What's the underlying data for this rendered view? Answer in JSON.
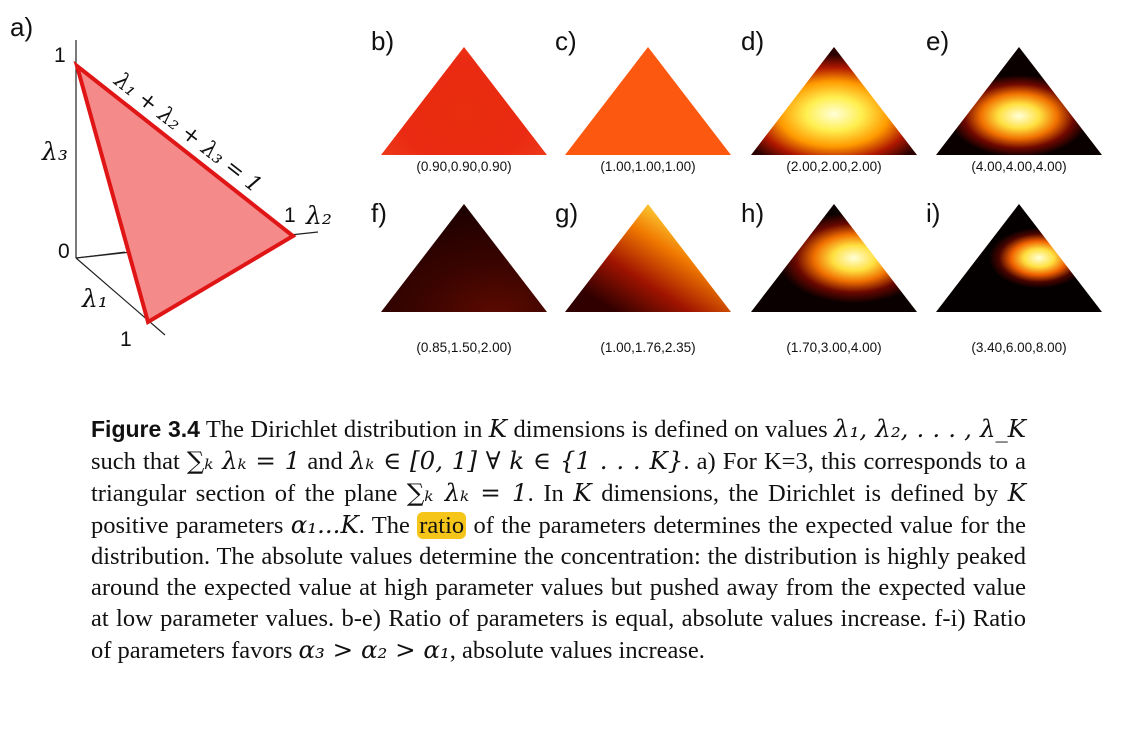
{
  "panel_a": {
    "label": "a)",
    "tick_one_top": "1",
    "tick_zero": "0",
    "tick_one_right": "1",
    "tick_one_bottom": "1",
    "axis_lambda1": "λ₁",
    "axis_lambda2": "λ₂",
    "axis_lambda3": "λ₃",
    "plane_equation": "λ₁ + λ₂ + λ₃ = 1",
    "fill_color": "#f58a8a",
    "edge_color": "#e01515"
  },
  "panels": [
    {
      "label": "b)",
      "caption": "(0.90,0.90,0.90)"
    },
    {
      "label": "c)",
      "caption": "(1.00,1.00,1.00)"
    },
    {
      "label": "d)",
      "caption": "(2.00,2.00,2.00)"
    },
    {
      "label": "e)",
      "caption": "(4.00,4.00,4.00)"
    },
    {
      "label": "f)",
      "caption": "(0.85,1.50,2.00)"
    },
    {
      "label": "g)",
      "caption": "(1.00,1.76,2.35)"
    },
    {
      "label": "h)",
      "caption": "(1.70,3.00,4.00)"
    },
    {
      "label": "i)",
      "caption": "(3.40,6.00,8.00)"
    }
  ],
  "caption": {
    "figure_label": "Figure 3.4",
    "highlight_color": "#f5c51a",
    "s1": "The Dirichlet distribution in",
    "s2": "dimensions is defined on values",
    "s3": "such that",
    "s4": "and",
    "s5": ". a) For K=3, this corresponds to a triangular section of the plane",
    "s6": ". In",
    "s7": "dimensions, the Dirichlet is defined by",
    "s8": "positive parameters",
    "s9": ". The",
    "highlight_word": "ratio",
    "s10": "of the parameters determines the expected value for the distribution. The absolute values determine the concentration: the distribution is highly peaked around the expected value at high parameter values but pushed away from the expected value at low parameter values. b-e) Ratio of parameters is equal, absolute values increase. f-i) Ratio of parameters favors",
    "s11": ", absolute values increase.",
    "m_K": "K",
    "m_values": "λ₁, λ₂, . . . , λ_K",
    "m_sum": "∑ₖ λₖ = 1",
    "m_range": "λₖ ∈ [0, 1]  ∀  k ∈ {1 . . . K}",
    "m_plane": "∑ₖ λₖ = 1",
    "m_params": "α₁...K",
    "m_order": "α₃ > α₂ > α₁"
  }
}
